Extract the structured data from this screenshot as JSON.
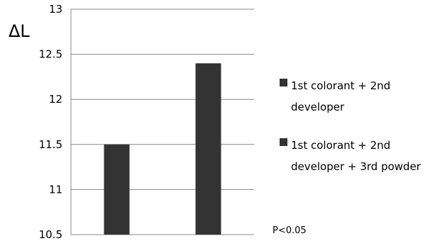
{
  "chart_data": {
    "type": "bar",
    "categories": [
      "",
      ""
    ],
    "series": [
      {
        "name": "1st colorant + 2nd\ndeveloper",
        "values": [
          11.5,
          null
        ]
      },
      {
        "name": "1st colorant + 2nd\ndeveloper + 3rd powder",
        "values": [
          null,
          12.4
        ]
      }
    ],
    "title": "",
    "xlabel": "",
    "ylabel": "ΔL",
    "ylim": [
      10.5,
      13
    ],
    "yticks": [
      10.5,
      11,
      11.5,
      12,
      12.5,
      13
    ],
    "ytick_labels": [
      "10.5",
      "11",
      "11.5",
      "12",
      "12.5",
      "13"
    ],
    "grid": true,
    "legend_position": "right",
    "bar_color": "#333333",
    "annotation": "P<0.05"
  }
}
